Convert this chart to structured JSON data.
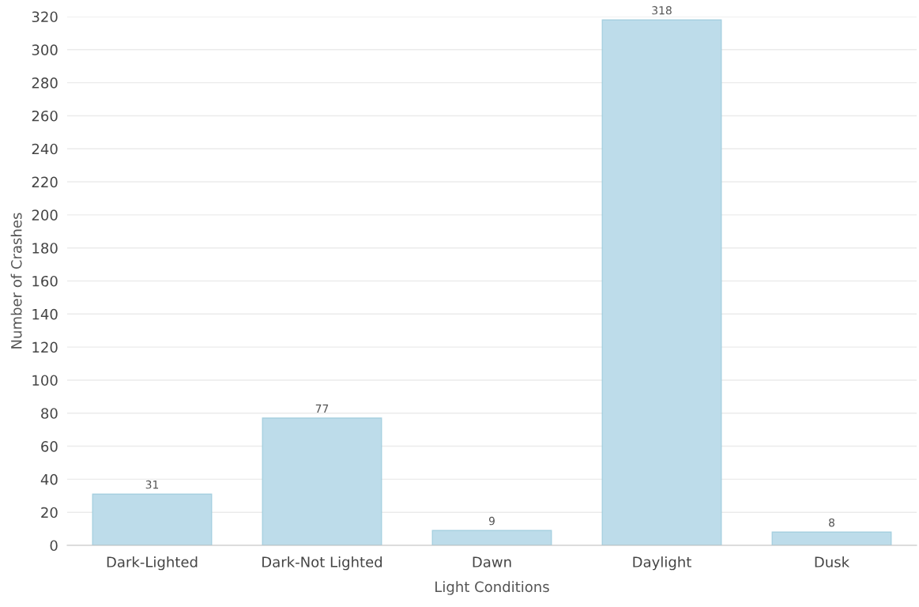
{
  "chart_data": {
    "type": "bar",
    "xlabel": "Light Conditions",
    "ylabel": "Number of Crashes",
    "categories": [
      "Dark-Lighted",
      "Dark-Not Lighted",
      "Dawn",
      "Daylight",
      "Dusk"
    ],
    "values": [
      31,
      77,
      9,
      318,
      8
    ],
    "color": "#bddcea",
    "ylim": [
      0,
      320
    ],
    "yticks": [
      0,
      20,
      40,
      60,
      80,
      100,
      120,
      140,
      160,
      180,
      200,
      220,
      240,
      260,
      280,
      300,
      320
    ],
    "grid": "y",
    "data_labels": true,
    "legend": false
  }
}
